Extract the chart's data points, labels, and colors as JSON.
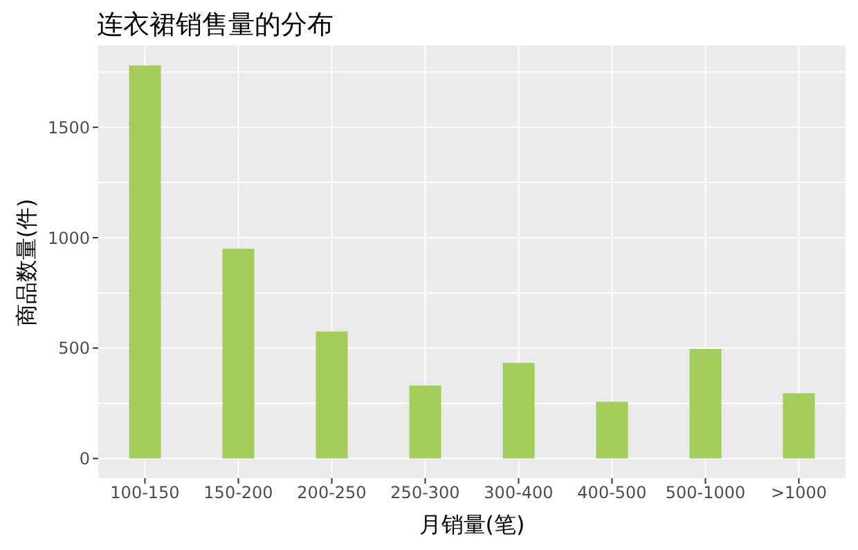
{
  "chart_data": {
    "type": "bar",
    "title": "连衣裙销售量的分布",
    "xlabel": "月销量(笔)",
    "ylabel": "商品数量(件)",
    "categories": [
      "100-150",
      "150-200",
      "200-250",
      "250-300",
      "300-400",
      "400-500",
      "500-1000",
      ">1000"
    ],
    "values": [
      1780,
      950,
      575,
      330,
      433,
      257,
      496,
      295
    ],
    "color": "#a2cd5a",
    "ylim": [
      -89,
      1870
    ],
    "yticks": [
      0,
      500,
      1000,
      1500
    ],
    "grid": true
  }
}
